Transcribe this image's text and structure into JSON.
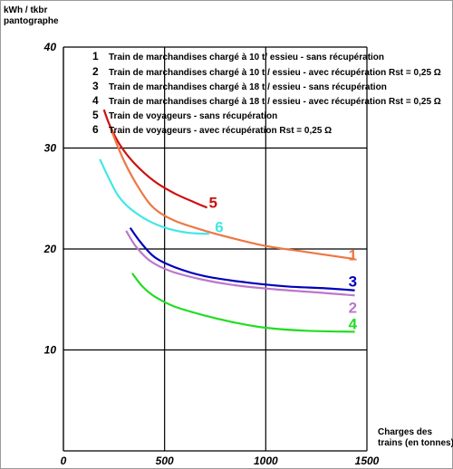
{
  "chart_data": {
    "type": "line",
    "ylabel": "kWh / tkbr\npantographe",
    "xlabel": "Charges des\ntrains (en tonnes)",
    "xlim": [
      0,
      1500
    ],
    "ylim": [
      0,
      40
    ],
    "x_ticks": [
      "0",
      "500",
      "1000",
      "1500"
    ],
    "y_ticks": [
      "10",
      "20",
      "30",
      "40"
    ],
    "grid": true,
    "legend_position": "top",
    "legend": [
      {
        "num": "1",
        "text": "Train de marchandises chargé à 10 t/ essieu - sans récupération"
      },
      {
        "num": "2",
        "text": "Train de marchandises chargé à 10 t / essieu - avec récupération Rst = 0,25 Ω"
      },
      {
        "num": "3",
        "text": "Train de marchandises chargé à 18 t / essieu - sans récupération"
      },
      {
        "num": "4",
        "text": "Train de marchandises chargé à 18 t / essieu - avec récupération Rst = 0,25 Ω"
      },
      {
        "num": "5",
        "text": "Train de voyageurs - sans récupération"
      },
      {
        "num": "6",
        "text": "Train de voyageurs - avec récupération Rst = 0,25 Ω"
      }
    ],
    "series": [
      {
        "label": "5",
        "color": "#cc1111",
        "points": [
          [
            200,
            33.8
          ],
          [
            230,
            32.2
          ],
          [
            280,
            30.3
          ],
          [
            350,
            28.5
          ],
          [
            450,
            26.7
          ],
          [
            550,
            25.5
          ],
          [
            650,
            24.6
          ],
          [
            710,
            24.1
          ]
        ]
      },
      {
        "label": "1",
        "color": "#ee7744",
        "points": [
          [
            230,
            32.1
          ],
          [
            300,
            28.7
          ],
          [
            380,
            25.8
          ],
          [
            450,
            24.0
          ],
          [
            550,
            22.8
          ],
          [
            700,
            21.8
          ],
          [
            850,
            21.0
          ],
          [
            1000,
            20.3
          ],
          [
            1200,
            19.7
          ],
          [
            1440,
            19.0
          ]
        ]
      },
      {
        "label": "6",
        "color": "#44e6e6",
        "points": [
          [
            180,
            28.9
          ],
          [
            220,
            27.2
          ],
          [
            270,
            25.3
          ],
          [
            330,
            24.0
          ],
          [
            420,
            22.8
          ],
          [
            520,
            22.0
          ],
          [
            620,
            21.6
          ],
          [
            720,
            21.5
          ]
        ]
      },
      {
        "label": "3",
        "color": "#0000bb",
        "points": [
          [
            330,
            22.1
          ],
          [
            380,
            20.7
          ],
          [
            450,
            19.2
          ],
          [
            550,
            18.2
          ],
          [
            700,
            17.3
          ],
          [
            900,
            16.7
          ],
          [
            1100,
            16.3
          ],
          [
            1300,
            16.1
          ],
          [
            1440,
            15.9
          ]
        ]
      },
      {
        "label": "2",
        "color": "#bb77cc",
        "points": [
          [
            310,
            21.8
          ],
          [
            360,
            20.2
          ],
          [
            430,
            18.8
          ],
          [
            530,
            17.8
          ],
          [
            680,
            17.0
          ],
          [
            850,
            16.4
          ],
          [
            1050,
            16.0
          ],
          [
            1250,
            15.7
          ],
          [
            1440,
            15.4
          ]
        ]
      },
      {
        "label": "4",
        "color": "#22dd22",
        "points": [
          [
            340,
            17.6
          ],
          [
            390,
            16.3
          ],
          [
            450,
            15.3
          ],
          [
            550,
            14.3
          ],
          [
            700,
            13.4
          ],
          [
            850,
            12.7
          ],
          [
            1000,
            12.2
          ],
          [
            1200,
            11.9
          ],
          [
            1440,
            11.8
          ]
        ]
      }
    ],
    "series_label_positions": [
      {
        "label": "5",
        "x": 740,
        "y": 24.6
      },
      {
        "label": "6",
        "x": 770,
        "y": 22.2
      },
      {
        "label": "1",
        "x": 1430,
        "y": 19.4
      },
      {
        "label": "3",
        "x": 1430,
        "y": 16.8
      },
      {
        "label": "2",
        "x": 1430,
        "y": 14.2
      },
      {
        "label": "4",
        "x": 1430,
        "y": 12.6
      }
    ]
  }
}
